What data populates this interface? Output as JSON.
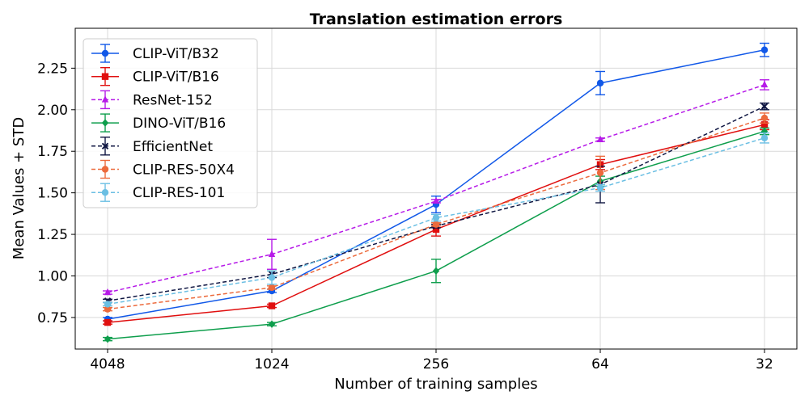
{
  "chart_data": {
    "type": "line",
    "title": "Translation estimation errors",
    "xlabel": "Number of training samples",
    "ylabel": "Mean Values + STD",
    "categories": [
      "4048",
      "1024",
      "256",
      "64",
      "32"
    ],
    "ylim": [
      0.56,
      2.49
    ],
    "yticks": [
      0.75,
      1.0,
      1.25,
      1.5,
      1.75,
      2.0,
      2.25
    ],
    "ytick_labels": [
      "0.75",
      "1.00",
      "1.25",
      "1.50",
      "1.75",
      "2.00",
      "2.25"
    ],
    "grid": true,
    "legend_position": "top-left",
    "series": [
      {
        "name": "CLIP-ViT/B32",
        "color": "#1158e8",
        "dash": "solid",
        "marker": "circle",
        "values": [
          0.74,
          0.91,
          1.43,
          2.16,
          2.36
        ],
        "errors": [
          0.01,
          0.01,
          0.05,
          0.07,
          0.04
        ]
      },
      {
        "name": "CLIP-ViT/B16",
        "color": "#e00f0f",
        "dash": "solid",
        "marker": "square",
        "values": [
          0.72,
          0.82,
          1.28,
          1.67,
          1.91
        ],
        "errors": [
          0.01,
          0.01,
          0.04,
          0.03,
          0.03
        ]
      },
      {
        "name": "ResNet-152",
        "color": "#b61ae8",
        "dash": "dashed",
        "marker": "triangle",
        "values": [
          0.9,
          1.13,
          1.45,
          1.82,
          2.15
        ],
        "errors": [
          0.01,
          0.09,
          0.01,
          0.01,
          0.03
        ]
      },
      {
        "name": "DINO-ViT/B16",
        "color": "#0e9e4c",
        "dash": "solid",
        "marker": "diamond",
        "values": [
          0.62,
          0.71,
          1.03,
          1.57,
          1.87
        ],
        "errors": [
          0.01,
          0.01,
          0.07,
          0.03,
          0.02
        ]
      },
      {
        "name": "EfficientNet",
        "color": "#101743",
        "dash": "dashed",
        "marker": "x",
        "values": [
          0.85,
          1.01,
          1.3,
          1.55,
          2.02
        ],
        "errors": [
          0.01,
          0.02,
          0.01,
          0.11,
          0.02
        ]
      },
      {
        "name": "CLIP-RES-50X4",
        "color": "#ec6a3c",
        "dash": "dashed",
        "marker": "circle",
        "values": [
          0.8,
          0.93,
          1.31,
          1.62,
          1.95
        ],
        "errors": [
          0.01,
          0.01,
          0.01,
          0.1,
          0.03
        ]
      },
      {
        "name": "CLIP-RES-101",
        "color": "#6bbfe3",
        "dash": "dashed",
        "marker": "circle",
        "values": [
          0.83,
          0.99,
          1.35,
          1.53,
          1.83
        ],
        "errors": [
          0.01,
          0.04,
          0.02,
          0.02,
          0.03
        ]
      }
    ]
  }
}
